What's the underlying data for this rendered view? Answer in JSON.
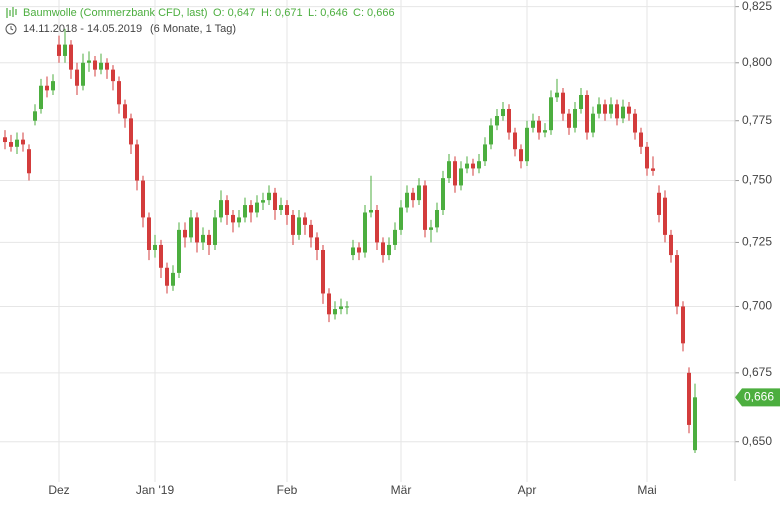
{
  "header": {
    "title": "Baumwolle (Commerzbank CFD, last)",
    "open": "O: 0,647",
    "high": "H: 0,671",
    "low": "L: 0,646",
    "close": "C: 0,666",
    "range": "14.11.2018 - 14.05.2019",
    "period": "(6 Monate, 1 Tag)"
  },
  "chart_data": {
    "type": "candlestick",
    "log_scale": true,
    "grid": true,
    "up_color": "#4cae3f",
    "down_color": "#d33c3c",
    "ylim": [
      0.64,
      0.828
    ],
    "yticks": [
      {
        "value": 0.825,
        "label": "0,825"
      },
      {
        "value": 0.8,
        "label": "0,800"
      },
      {
        "value": 0.775,
        "label": "0,775"
      },
      {
        "value": 0.75,
        "label": "0,750"
      },
      {
        "value": 0.725,
        "label": "0,725"
      },
      {
        "value": 0.7,
        "label": "0,700"
      },
      {
        "value": 0.675,
        "label": "0,675"
      },
      {
        "value": 0.65,
        "label": "0,650"
      }
    ],
    "price_marker": {
      "value": 0.666,
      "label": "0,666"
    },
    "categories": [
      null,
      null,
      null,
      null,
      null,
      null,
      null,
      null,
      null,
      "Dez",
      null,
      null,
      null,
      null,
      null,
      null,
      null,
      null,
      null,
      null,
      null,
      null,
      null,
      null,
      null,
      "Jan '19",
      null,
      null,
      null,
      null,
      null,
      null,
      null,
      null,
      null,
      null,
      null,
      null,
      null,
      null,
      null,
      null,
      null,
      null,
      null,
      null,
      null,
      "Feb",
      null,
      null,
      null,
      null,
      null,
      null,
      null,
      null,
      null,
      null,
      null,
      null,
      null,
      null,
      null,
      null,
      null,
      null,
      "Mär",
      null,
      null,
      null,
      null,
      null,
      null,
      null,
      null,
      null,
      null,
      null,
      null,
      null,
      null,
      null,
      null,
      null,
      null,
      null,
      null,
      "Apr",
      null,
      null,
      null,
      null,
      null,
      null,
      null,
      null,
      null,
      null,
      null,
      null,
      null,
      null,
      null,
      null,
      null,
      null,
      null,
      "Mai",
      null,
      null,
      null,
      null,
      null,
      null,
      null,
      null
    ],
    "ohlc": [
      [
        0.768,
        0.771,
        0.763,
        0.766
      ],
      [
        0.766,
        0.769,
        0.762,
        0.764
      ],
      [
        0.764,
        0.77,
        0.761,
        0.767
      ],
      [
        0.767,
        0.77,
        0.762,
        0.765
      ],
      [
        0.763,
        0.765,
        0.75,
        0.753
      ],
      [
        0.775,
        0.782,
        0.773,
        0.779
      ],
      [
        0.78,
        0.793,
        0.778,
        0.79
      ],
      [
        0.79,
        0.794,
        0.785,
        0.788
      ],
      [
        0.788,
        0.795,
        0.786,
        0.792
      ],
      [
        0.808,
        0.812,
        0.8,
        0.803
      ],
      [
        0.803,
        0.815,
        0.8,
        0.808
      ],
      [
        0.808,
        0.81,
        0.793,
        0.797
      ],
      [
        0.797,
        0.8,
        0.786,
        0.79
      ],
      [
        0.79,
        0.804,
        0.788,
        0.8
      ],
      [
        0.8,
        0.805,
        0.796,
        0.801
      ],
      [
        0.801,
        0.803,
        0.794,
        0.797
      ],
      [
        0.797,
        0.804,
        0.795,
        0.8
      ],
      [
        0.8,
        0.802,
        0.793,
        0.797
      ],
      [
        0.797,
        0.799,
        0.788,
        0.792
      ],
      [
        0.792,
        0.794,
        0.778,
        0.782
      ],
      [
        0.782,
        0.784,
        0.772,
        0.776
      ],
      [
        0.776,
        0.778,
        0.761,
        0.765
      ],
      [
        0.765,
        0.767,
        0.746,
        0.75
      ],
      [
        0.75,
        0.752,
        0.731,
        0.735
      ],
      [
        0.735,
        0.737,
        0.718,
        0.722
      ],
      [
        0.722,
        0.728,
        0.719,
        0.724
      ],
      [
        0.724,
        0.726,
        0.711,
        0.715
      ],
      [
        0.715,
        0.717,
        0.705,
        0.708
      ],
      [
        0.708,
        0.716,
        0.706,
        0.713
      ],
      [
        0.713,
        0.733,
        0.711,
        0.73
      ],
      [
        0.73,
        0.733,
        0.723,
        0.727
      ],
      [
        0.727,
        0.738,
        0.725,
        0.735
      ],
      [
        0.735,
        0.737,
        0.721,
        0.725
      ],
      [
        0.725,
        0.731,
        0.722,
        0.728
      ],
      [
        0.728,
        0.73,
        0.72,
        0.724
      ],
      [
        0.724,
        0.738,
        0.722,
        0.735
      ],
      [
        0.735,
        0.746,
        0.733,
        0.742
      ],
      [
        0.742,
        0.744,
        0.732,
        0.736
      ],
      [
        0.736,
        0.738,
        0.729,
        0.733
      ],
      [
        0.733,
        0.738,
        0.731,
        0.735
      ],
      [
        0.735,
        0.743,
        0.733,
        0.74
      ],
      [
        0.74,
        0.742,
        0.733,
        0.737
      ],
      [
        0.737,
        0.744,
        0.735,
        0.741
      ],
      [
        0.741,
        0.745,
        0.738,
        0.742
      ],
      [
        0.742,
        0.748,
        0.74,
        0.745
      ],
      [
        0.745,
        0.747,
        0.734,
        0.738
      ],
      [
        0.738,
        0.743,
        0.736,
        0.74
      ],
      [
        0.74,
        0.742,
        0.732,
        0.736
      ],
      [
        0.736,
        0.738,
        0.724,
        0.728
      ],
      [
        0.728,
        0.738,
        0.726,
        0.735
      ],
      [
        0.735,
        0.737,
        0.728,
        0.732
      ],
      [
        0.732,
        0.734,
        0.723,
        0.727
      ],
      [
        0.727,
        0.729,
        0.718,
        0.722
      ],
      [
        0.722,
        0.724,
        0.701,
        0.705
      ],
      [
        0.705,
        0.707,
        0.694,
        0.697
      ],
      [
        0.697,
        0.702,
        0.695,
        0.699
      ],
      [
        0.699,
        0.703,
        0.697,
        0.7
      ],
      [
        0.7,
        0.702,
        0.697,
        0.7
      ],
      [
        0.72,
        0.726,
        0.718,
        0.723
      ],
      [
        0.723,
        0.725,
        0.718,
        0.721
      ],
      [
        0.721,
        0.74,
        0.719,
        0.737
      ],
      [
        0.737,
        0.752,
        0.735,
        0.738
      ],
      [
        0.738,
        0.74,
        0.722,
        0.725
      ],
      [
        0.725,
        0.727,
        0.717,
        0.72
      ],
      [
        0.72,
        0.727,
        0.718,
        0.724
      ],
      [
        0.724,
        0.733,
        0.722,
        0.73
      ],
      [
        0.73,
        0.742,
        0.728,
        0.739
      ],
      [
        0.739,
        0.748,
        0.737,
        0.745
      ],
      [
        0.745,
        0.747,
        0.739,
        0.742
      ],
      [
        0.742,
        0.751,
        0.74,
        0.748
      ],
      [
        0.748,
        0.75,
        0.727,
        0.73
      ],
      [
        0.73,
        0.734,
        0.725,
        0.731
      ],
      [
        0.731,
        0.741,
        0.729,
        0.738
      ],
      [
        0.738,
        0.754,
        0.736,
        0.751
      ],
      [
        0.751,
        0.761,
        0.749,
        0.758
      ],
      [
        0.758,
        0.76,
        0.745,
        0.748
      ],
      [
        0.748,
        0.758,
        0.746,
        0.755
      ],
      [
        0.755,
        0.76,
        0.753,
        0.757
      ],
      [
        0.757,
        0.759,
        0.752,
        0.755
      ],
      [
        0.755,
        0.761,
        0.753,
        0.758
      ],
      [
        0.758,
        0.768,
        0.756,
        0.765
      ],
      [
        0.765,
        0.776,
        0.763,
        0.773
      ],
      [
        0.773,
        0.78,
        0.771,
        0.777
      ],
      [
        0.777,
        0.783,
        0.775,
        0.78
      ],
      [
        0.78,
        0.782,
        0.767,
        0.77
      ],
      [
        0.77,
        0.772,
        0.76,
        0.763
      ],
      [
        0.763,
        0.765,
        0.755,
        0.758
      ],
      [
        0.758,
        0.775,
        0.756,
        0.772
      ],
      [
        0.772,
        0.778,
        0.77,
        0.775
      ],
      [
        0.775,
        0.777,
        0.767,
        0.77
      ],
      [
        0.77,
        0.774,
        0.768,
        0.771
      ],
      [
        0.771,
        0.788,
        0.769,
        0.785
      ],
      [
        0.785,
        0.793,
        0.783,
        0.787
      ],
      [
        0.787,
        0.789,
        0.775,
        0.778
      ],
      [
        0.778,
        0.78,
        0.769,
        0.772
      ],
      [
        0.772,
        0.783,
        0.77,
        0.78
      ],
      [
        0.78,
        0.789,
        0.778,
        0.786
      ],
      [
        0.786,
        0.788,
        0.767,
        0.77
      ],
      [
        0.77,
        0.781,
        0.768,
        0.778
      ],
      [
        0.778,
        0.785,
        0.776,
        0.782
      ],
      [
        0.782,
        0.784,
        0.775,
        0.778
      ],
      [
        0.778,
        0.785,
        0.776,
        0.782
      ],
      [
        0.782,
        0.784,
        0.773,
        0.776
      ],
      [
        0.776,
        0.784,
        0.774,
        0.781
      ],
      [
        0.781,
        0.783,
        0.775,
        0.778
      ],
      [
        0.778,
        0.78,
        0.767,
        0.77
      ],
      [
        0.77,
        0.772,
        0.761,
        0.764
      ],
      [
        0.764,
        0.766,
        0.752,
        0.755
      ],
      [
        0.755,
        0.76,
        0.752,
        0.754
      ],
      [
        0.745,
        0.748,
        0.733,
        0.736
      ],
      [
        0.743,
        0.746,
        0.725,
        0.728
      ],
      [
        0.728,
        0.73,
        0.717,
        0.72
      ],
      [
        0.72,
        0.722,
        0.697,
        0.7
      ],
      [
        0.7,
        0.702,
        0.683,
        0.686
      ],
      [
        0.675,
        0.677,
        0.653,
        0.656
      ],
      [
        0.647,
        0.671,
        0.646,
        0.666
      ]
    ]
  }
}
